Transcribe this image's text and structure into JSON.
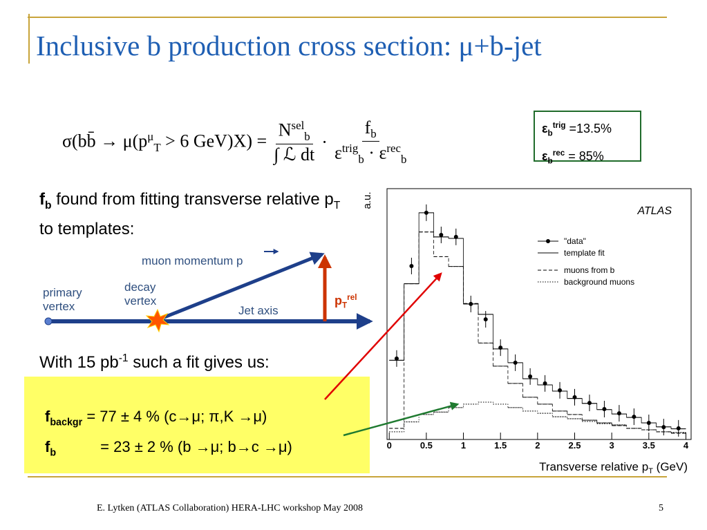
{
  "title": "Inclusive b production cross section: μ+b-jet",
  "formula": {
    "lhs": "σ(bb̄ → μ(p",
    "lhs_sub": "T",
    "lhs_sup": "μ",
    "lhs_end": " > 6  GeV)X) =",
    "num1": "N",
    "num1_sub": "b",
    "num1_sup": "sel",
    "den1": "∫ ℒ dt",
    "dot": "·",
    "num2": "f",
    "num2_sub": "b",
    "den2a": "ε",
    "den2a_sub": "b",
    "den2a_sup": "trig",
    "den2dot": " · ",
    "den2b": "ε",
    "den2b_sub": "b",
    "den2b_sup": "rec"
  },
  "efficiency_box": [
    {
      "symbol": "ε",
      "sub": "b",
      "sup": "trig",
      "value": " =13.5%"
    },
    {
      "symbol": "ε",
      "sub": "b",
      "sup": "rec",
      "value": " = 85%"
    }
  ],
  "intro": {
    "f": "f",
    "f_sub": "b",
    "text1": " found from fitting transverse relative p",
    "text1_sub": "T",
    "text2": " to templates:"
  },
  "diagram": {
    "muon_label": "muon momentum p",
    "primary": "primary vertex",
    "decay": "decay vertex",
    "jet": "Jet axis",
    "prel": "p",
    "prel_sub": "T",
    "prel_sup": "rel"
  },
  "fit_text": {
    "a": "With 15 pb",
    "sup": "-1",
    "b": " such a fit gives us:"
  },
  "results": [
    {
      "f": "f",
      "sub": "backgr",
      "text": " = 77 ± 4 %  (c→μ; π,K →μ)"
    },
    {
      "f": "f",
      "sub": "b",
      "text": " = 23 ± 2 %  (b →μ; b→c →μ)"
    }
  ],
  "footer": {
    "left": "E. Lytken  (ATLAS Collaboration) HERA-LHC workshop May 2008",
    "page": "5"
  },
  "chart_data": {
    "type": "histogram",
    "y_label": "a.u.",
    "annotation": "ATLAS",
    "x_label": "Transverse relative p",
    "x_label_sub": "T",
    "x_label_end": " (GeV)",
    "bins": [
      0,
      0.2,
      0.4,
      0.6,
      0.8,
      1.0,
      1.2,
      1.4,
      1.6,
      1.8,
      2.0,
      2.2,
      2.4,
      2.6,
      2.8,
      3.0,
      3.2,
      3.4,
      3.6,
      3.8,
      4.0
    ],
    "xlim": [
      -0.03,
      4.07
    ],
    "xticks": [
      0,
      0.5,
      1,
      1.5,
      2,
      2.5,
      3,
      3.5,
      4
    ],
    "ylim": [
      0,
      100
    ],
    "series": [
      {
        "name": "\"data\"",
        "style": "points",
        "color": "#000000",
        "values": [
          31.7,
          69.2,
          90.8,
          81.8,
          81,
          53.8,
          47.6,
          36.1,
          30,
          24.4,
          21.6,
          18.8,
          16,
          13.7,
          11.2,
          9.5,
          8.1,
          5.6,
          3.9,
          3.4
        ]
      },
      {
        "name": "template fit",
        "style": "solid",
        "color": "#000000",
        "values": [
          31,
          62,
          90.8,
          81,
          80.4,
          53.8,
          49.6,
          35.6,
          30,
          23.5,
          21,
          18.5,
          15.5,
          13.5,
          11,
          9.2,
          7.8,
          5.6,
          4,
          3.2
        ]
      },
      {
        "name": "muons from b",
        "style": "dashed",
        "color": "#000000",
        "values": [
          3.4,
          62,
          83,
          73,
          69,
          54,
          38,
          28.6,
          21.6,
          16,
          13.2,
          10.4,
          9,
          6.7,
          5.6,
          4.5,
          3.4,
          2.8,
          2,
          1.4
        ]
      },
      {
        "name": "background muons",
        "style": "dotted",
        "color": "#000000",
        "values": [
          2,
          6,
          9,
          10,
          11.8,
          13.2,
          14,
          13.2,
          11.8,
          10.4,
          9.5,
          8.1,
          7.3,
          6.2,
          5.3,
          4.8,
          3.4,
          2.8,
          2,
          1.7
        ]
      }
    ]
  }
}
